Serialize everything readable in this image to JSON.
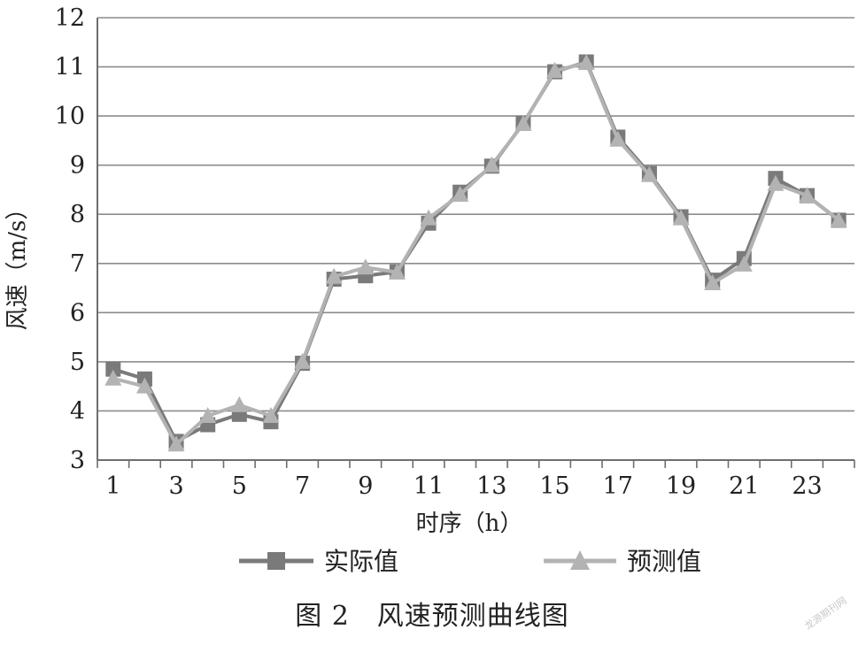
{
  "chart_data": {
    "type": "line",
    "title": "",
    "xlabel": "时序（h）",
    "ylabel": "风速（m/s）",
    "x": [
      1,
      2,
      3,
      4,
      5,
      6,
      7,
      8,
      9,
      10,
      11,
      12,
      13,
      14,
      15,
      16,
      17,
      18,
      19,
      20,
      21,
      22,
      23,
      24
    ],
    "x_tick_labels": [
      "1",
      "3",
      "5",
      "7",
      "9",
      "11",
      "13",
      "15",
      "17",
      "19",
      "21",
      "23"
    ],
    "ylim": [
      3,
      12
    ],
    "y_tick_labels": [
      "3",
      "4",
      "5",
      "6",
      "7",
      "8",
      "9",
      "10",
      "11",
      "12"
    ],
    "grid": "horizontal",
    "legend_position": "bottom",
    "series": [
      {
        "name": "实际值",
        "marker": "square",
        "color": "#7a7a7a",
        "values": [
          4.85,
          4.65,
          3.38,
          3.72,
          3.93,
          3.78,
          4.97,
          6.68,
          6.75,
          6.83,
          7.82,
          8.45,
          8.98,
          9.85,
          10.9,
          11.1,
          9.57,
          8.83,
          7.95,
          6.66,
          7.1,
          8.73,
          8.38,
          7.88
        ]
      },
      {
        "name": "预测值",
        "marker": "triangle",
        "color": "#b3b3b3",
        "values": [
          4.66,
          4.5,
          3.32,
          3.9,
          4.12,
          3.9,
          5.0,
          6.73,
          6.92,
          6.82,
          7.92,
          8.4,
          9.0,
          9.84,
          10.92,
          11.08,
          9.52,
          8.8,
          7.92,
          6.6,
          6.98,
          8.62,
          8.38,
          7.88
        ]
      }
    ]
  },
  "caption": "图 2　风速预测曲线图",
  "watermark": "龙源期刊网"
}
